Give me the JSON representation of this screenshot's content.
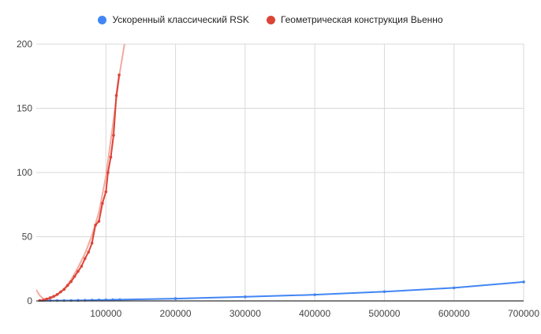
{
  "chart_data": {
    "type": "line",
    "title": "",
    "xlabel": "",
    "ylabel": "",
    "xlim": [
      0,
      700000
    ],
    "ylim": [
      0,
      200
    ],
    "x_ticks": [
      100000,
      200000,
      300000,
      400000,
      500000,
      600000,
      700000
    ],
    "x_tick_labels": [
      "100000",
      "200000",
      "300000",
      "400000",
      "500000",
      "600000",
      "700000"
    ],
    "y_ticks": [
      0,
      50,
      100,
      150,
      200
    ],
    "y_tick_labels": [
      "0",
      "50",
      "100",
      "150",
      "200"
    ],
    "grid": true,
    "legend_position": "top",
    "series": [
      {
        "name": "Ускоренный классический RSK",
        "color": "#4285f4",
        "points": [
          [
            5000,
            0.1
          ],
          [
            10000,
            0.1
          ],
          [
            20000,
            0.2
          ],
          [
            30000,
            0.2
          ],
          [
            40000,
            0.3
          ],
          [
            50000,
            0.3
          ],
          [
            60000,
            0.4
          ],
          [
            70000,
            0.5
          ],
          [
            80000,
            0.6
          ],
          [
            90000,
            0.7
          ],
          [
            100000,
            0.8
          ],
          [
            110000,
            0.9
          ],
          [
            120000,
            1.0
          ],
          [
            200000,
            1.8
          ],
          [
            300000,
            3.2
          ],
          [
            400000,
            4.8
          ],
          [
            500000,
            7.2
          ],
          [
            600000,
            10.2
          ],
          [
            700000,
            14.8
          ]
        ]
      },
      {
        "name": "Геометрическая конструкция Вьенно",
        "color": "#db4437",
        "points": [
          [
            5000,
            0.3
          ],
          [
            10000,
            0.6
          ],
          [
            15000,
            1.5
          ],
          [
            20000,
            2.5
          ],
          [
            25000,
            3.6
          ],
          [
            30000,
            5
          ],
          [
            35000,
            7
          ],
          [
            40000,
            9
          ],
          [
            45000,
            12
          ],
          [
            50000,
            15
          ],
          [
            55000,
            19
          ],
          [
            60000,
            23
          ],
          [
            65000,
            27
          ],
          [
            70000,
            33
          ],
          [
            75000,
            38
          ],
          [
            80000,
            45
          ],
          [
            85000,
            59
          ],
          [
            90000,
            62
          ],
          [
            95000,
            76
          ],
          [
            100000,
            85
          ],
          [
            103000,
            100
          ],
          [
            107000,
            112
          ],
          [
            111000,
            129
          ],
          [
            115000,
            160
          ],
          [
            119000,
            176
          ]
        ]
      }
    ],
    "trendline": {
      "series": "Геометрическая конструкция Вьенно",
      "color": "#f4a99f",
      "points": [
        [
          0,
          8.5
        ],
        [
          5000,
          4.2
        ],
        [
          10000,
          1.8
        ],
        [
          15000,
          1.0
        ],
        [
          20000,
          1.5
        ],
        [
          30000,
          4.5
        ],
        [
          40000,
          9.5
        ],
        [
          50000,
          16.5
        ],
        [
          60000,
          26
        ],
        [
          70000,
          37
        ],
        [
          80000,
          51
        ],
        [
          90000,
          69
        ],
        [
          100000,
          97
        ],
        [
          110000,
          137
        ],
        [
          120000,
          178
        ],
        [
          127000,
          201
        ]
      ]
    }
  }
}
